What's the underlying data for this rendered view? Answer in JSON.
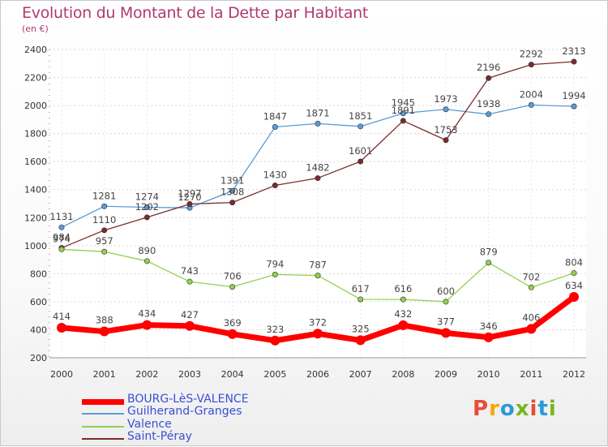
{
  "header": {
    "title": "Evolution du Montant de la Dette par Habitant",
    "unit": "(en €)"
  },
  "logo": {
    "text": "Proxiti",
    "colors": [
      "#e84b3a",
      "#f7a600",
      "#2a9bd6",
      "#7ab51d",
      "#e84b3a",
      "#2a9bd6",
      "#7ab51d"
    ]
  },
  "chart_data": {
    "type": "line",
    "x": [
      "2000",
      "2001",
      "2002",
      "2003",
      "2004",
      "2005",
      "2006",
      "2007",
      "2008",
      "2009",
      "2010",
      "2011",
      "2012"
    ],
    "ylim": [
      200,
      2400
    ],
    "yticks": [
      200,
      400,
      600,
      800,
      1000,
      1200,
      1400,
      1600,
      1800,
      2000,
      2200,
      2400
    ],
    "grid": true,
    "legend_position": "bottom-left",
    "series": [
      {
        "name": "BOURG-LèS-VALENCE",
        "color": "#ff0000",
        "values": [
          414,
          388,
          434,
          427,
          369,
          323,
          372,
          325,
          432,
          377,
          346,
          406,
          634
        ]
      },
      {
        "name": "Guilherand-Granges",
        "color": "#5b9bd5",
        "values": [
          1131,
          1281,
          1274,
          1270,
          1391,
          1847,
          1871,
          1851,
          1945,
          1973,
          1938,
          2004,
          1994
        ]
      },
      {
        "name": "Valence",
        "color": "#92d050",
        "values": [
          974,
          957,
          890,
          743,
          706,
          794,
          787,
          617,
          616,
          600,
          879,
          702,
          804
        ]
      },
      {
        "name": "Saint-Péray",
        "color": "#7b2c2c",
        "values": [
          984,
          1110,
          1202,
          1297,
          1308,
          1430,
          1482,
          1601,
          1891,
          1753,
          2196,
          2292,
          2313
        ]
      }
    ]
  }
}
